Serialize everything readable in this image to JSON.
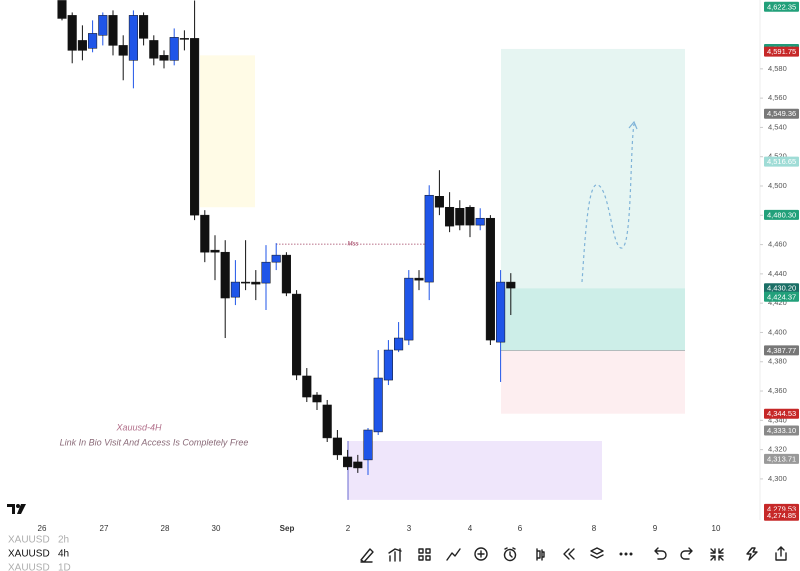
{
  "chart_data": {
    "type": "candlestick",
    "candles": [
      {
        "o": 4626.7,
        "h": 4626.7,
        "l": 4613.1,
        "c": 4614.4
      },
      {
        "o": 4616.5,
        "h": 4618.5,
        "l": 4583.8,
        "c": 4592.6
      },
      {
        "o": 4599.4,
        "h": 4609.7,
        "l": 4585.8,
        "c": 4592.6
      },
      {
        "o": 4594.0,
        "h": 4613.1,
        "l": 4591.3,
        "c": 4604.2
      },
      {
        "o": 4602.9,
        "h": 4618.5,
        "l": 4596.0,
        "c": 4616.5
      },
      {
        "o": 4616.5,
        "h": 4619.9,
        "l": 4589.2,
        "c": 4596.0
      },
      {
        "o": 4596.0,
        "h": 4602.9,
        "l": 4572.2,
        "c": 4589.2
      },
      {
        "o": 4585.8,
        "h": 4619.9,
        "l": 4566.7,
        "c": 4616.5
      },
      {
        "o": 4616.5,
        "h": 4618.5,
        "l": 4596.0,
        "c": 4600.8
      },
      {
        "o": 4599.4,
        "h": 4602.9,
        "l": 4582.4,
        "c": 4587.2
      },
      {
        "o": 4589.2,
        "h": 4592.6,
        "l": 4580.3,
        "c": 4585.8
      },
      {
        "o": 4585.8,
        "h": 4607.6,
        "l": 4582.4,
        "c": 4601.5
      },
      {
        "o": 4600.8,
        "h": 4606.3,
        "l": 4592.6,
        "c": 4600.1
      },
      {
        "o": 4600.8,
        "h": 4626.7,
        "l": 4476.7,
        "c": 4480.1
      },
      {
        "o": 4480.1,
        "h": 4483.5,
        "l": 4448.0,
        "c": 4454.8
      },
      {
        "o": 4456.2,
        "h": 4466.4,
        "l": 4435.7,
        "c": 4454.8
      },
      {
        "o": 4454.8,
        "h": 4463.0,
        "l": 4396.2,
        "c": 4423.5
      },
      {
        "o": 4424.1,
        "h": 4449.4,
        "l": 4418.7,
        "c": 4434.4
      },
      {
        "o": 4434.4,
        "h": 4463.0,
        "l": 4428.9,
        "c": 4433.7
      },
      {
        "o": 4434.4,
        "h": 4442.6,
        "l": 4422.1,
        "c": 4433.0
      },
      {
        "o": 4433.7,
        "h": 4459.6,
        "l": 4415.3,
        "c": 4448.0
      },
      {
        "o": 4448.0,
        "h": 4461.0,
        "l": 4442.6,
        "c": 4452.8
      },
      {
        "o": 4452.8,
        "h": 4454.8,
        "l": 4424.8,
        "c": 4426.9
      },
      {
        "o": 4426.2,
        "h": 4428.9,
        "l": 4367.5,
        "c": 4370.9
      },
      {
        "o": 4370.3,
        "h": 4375.7,
        "l": 4352.5,
        "c": 4355.9
      },
      {
        "o": 4357.3,
        "h": 4359.3,
        "l": 4347.1,
        "c": 4352.5
      },
      {
        "o": 4350.5,
        "h": 4353.9,
        "l": 4325.2,
        "c": 4328.0
      },
      {
        "o": 4328.0,
        "h": 4333.4,
        "l": 4313.0,
        "c": 4316.4
      },
      {
        "o": 4315.0,
        "h": 4319.8,
        "l": 4306.1,
        "c": 4308.2
      },
      {
        "o": 4311.6,
        "h": 4316.4,
        "l": 4304.1,
        "c": 4307.5
      },
      {
        "o": 4313.0,
        "h": 4334.8,
        "l": 4302.7,
        "c": 4333.4
      },
      {
        "o": 4332.1,
        "h": 4388.0,
        "l": 4330.0,
        "c": 4368.9
      },
      {
        "o": 4367.5,
        "h": 4394.8,
        "l": 4364.1,
        "c": 4388.0
      },
      {
        "o": 4388.0,
        "h": 4407.1,
        "l": 4386.6,
        "c": 4396.2
      },
      {
        "o": 4394.8,
        "h": 4442.6,
        "l": 4391.4,
        "c": 4437.1
      },
      {
        "o": 4437.1,
        "h": 4442.6,
        "l": 4428.9,
        "c": 4435.7
      },
      {
        "o": 4434.4,
        "h": 4500.5,
        "l": 4422.1,
        "c": 4493.7
      },
      {
        "o": 4493.0,
        "h": 4510.8,
        "l": 4480.1,
        "c": 4485.5
      },
      {
        "o": 4485.5,
        "h": 4495.8,
        "l": 4468.5,
        "c": 4472.6
      },
      {
        "o": 4484.8,
        "h": 4490.3,
        "l": 4469.8,
        "c": 4473.3
      },
      {
        "o": 4485.5,
        "h": 4486.9,
        "l": 4465.1,
        "c": 4473.3
      },
      {
        "o": 4473.3,
        "h": 4484.8,
        "l": 4469.8,
        "c": 4478.0
      },
      {
        "o": 4478.0,
        "h": 4480.1,
        "l": 4391.4,
        "c": 4394.8
      },
      {
        "o": 4393.4,
        "h": 4442.6,
        "l": 4366.2,
        "c": 4434.4
      },
      {
        "o": 4434.4,
        "h": 4440.5,
        "l": 4411.9,
        "c": 4430.3
      }
    ],
    "up_color": "#1f55e8",
    "down_color": "#111111",
    "ylim": [
      4274,
      4627
    ],
    "yticks": [
      {
        "value": 4300,
        "label": "4,300"
      },
      {
        "value": 4320,
        "label": "4,320"
      },
      {
        "value": 4340,
        "label": "4,340"
      },
      {
        "value": 4360,
        "label": "4,360"
      },
      {
        "value": 4380,
        "label": "4,380"
      },
      {
        "value": 4400,
        "label": "4,400"
      },
      {
        "value": 4420,
        "label": "4,420"
      },
      {
        "value": 4440,
        "label": "4,440"
      },
      {
        "value": 4460,
        "label": "4,460"
      },
      {
        "value": 4480,
        "label": "4,480"
      },
      {
        "value": 4500,
        "label": "4,500"
      },
      {
        "value": 4520,
        "label": "4,520"
      },
      {
        "value": 4540,
        "label": "4,540"
      },
      {
        "value": 4560,
        "label": "4,560"
      },
      {
        "value": 4580,
        "label": "4,580"
      }
    ],
    "price_tags": [
      {
        "value": 4622.35,
        "label": "4,622.35",
        "color": "#22a07a"
      },
      {
        "value": 4593.58,
        "label": "4,593.58",
        "color": "#1f9b79"
      },
      {
        "value": 4591.75,
        "label": "4,591.75",
        "color": "#c62828"
      },
      {
        "value": 4549.36,
        "label": "4,549.36",
        "color": "#777777"
      },
      {
        "value": 4516.65,
        "label": "4,516.65",
        "color": "#9fdcd6"
      },
      {
        "value": 4480.3,
        "label": "4,480.30",
        "color": "#22a07a"
      },
      {
        "value": 4430.2,
        "label": "4,430.20",
        "color": "#1b6f66"
      },
      {
        "value": 4424.37,
        "label": "4,424.37",
        "color": "#22a07a"
      },
      {
        "value": 4387.77,
        "label": "4,387.77",
        "color": "#777777"
      },
      {
        "value": 4344.53,
        "label": "4,344.53",
        "color": "#c62828"
      },
      {
        "value": 4333.1,
        "label": "4,333.10",
        "color": "#888888"
      },
      {
        "value": 4313.71,
        "label": "4,313.71",
        "color": "#999999"
      },
      {
        "value": 4279.53,
        "label": "4,279.53",
        "color": "#c62828"
      },
      {
        "value": 4274.85,
        "label": "4,274.85",
        "color": "#c62828"
      }
    ],
    "zones": [
      {
        "top": 4589.2,
        "bottom": 4485.5,
        "color": "#fffbe6"
      },
      {
        "top": 4325.9,
        "bottom": 4285.7,
        "color": "#efe6fb"
      },
      {
        "top": 4593.58,
        "bottom": 4430.2,
        "color": "#e6f5f2"
      },
      {
        "top": 4430.2,
        "bottom": 4387.77,
        "color": "#cdeee8"
      },
      {
        "top": 4387.77,
        "bottom": 4344.53,
        "color": "#fdeef0"
      }
    ],
    "mss": {
      "label": "Mss",
      "value": 4460.3
    },
    "categories": [
      "26",
      "27",
      "28",
      "30",
      "Sep",
      "2",
      "3",
      "4",
      "6",
      "8",
      "9",
      "10"
    ],
    "annotations": [
      "Xauusd-4H",
      "Link In Bio Visit And Access Is Completely Free"
    ]
  },
  "toolbar": {
    "rows": [
      {
        "symbol": "XAUUSD",
        "interval": "2h"
      },
      {
        "symbol": "XAUUSD",
        "interval": "4h"
      },
      {
        "symbol": "XAUUSD",
        "interval": "1D"
      }
    ]
  }
}
